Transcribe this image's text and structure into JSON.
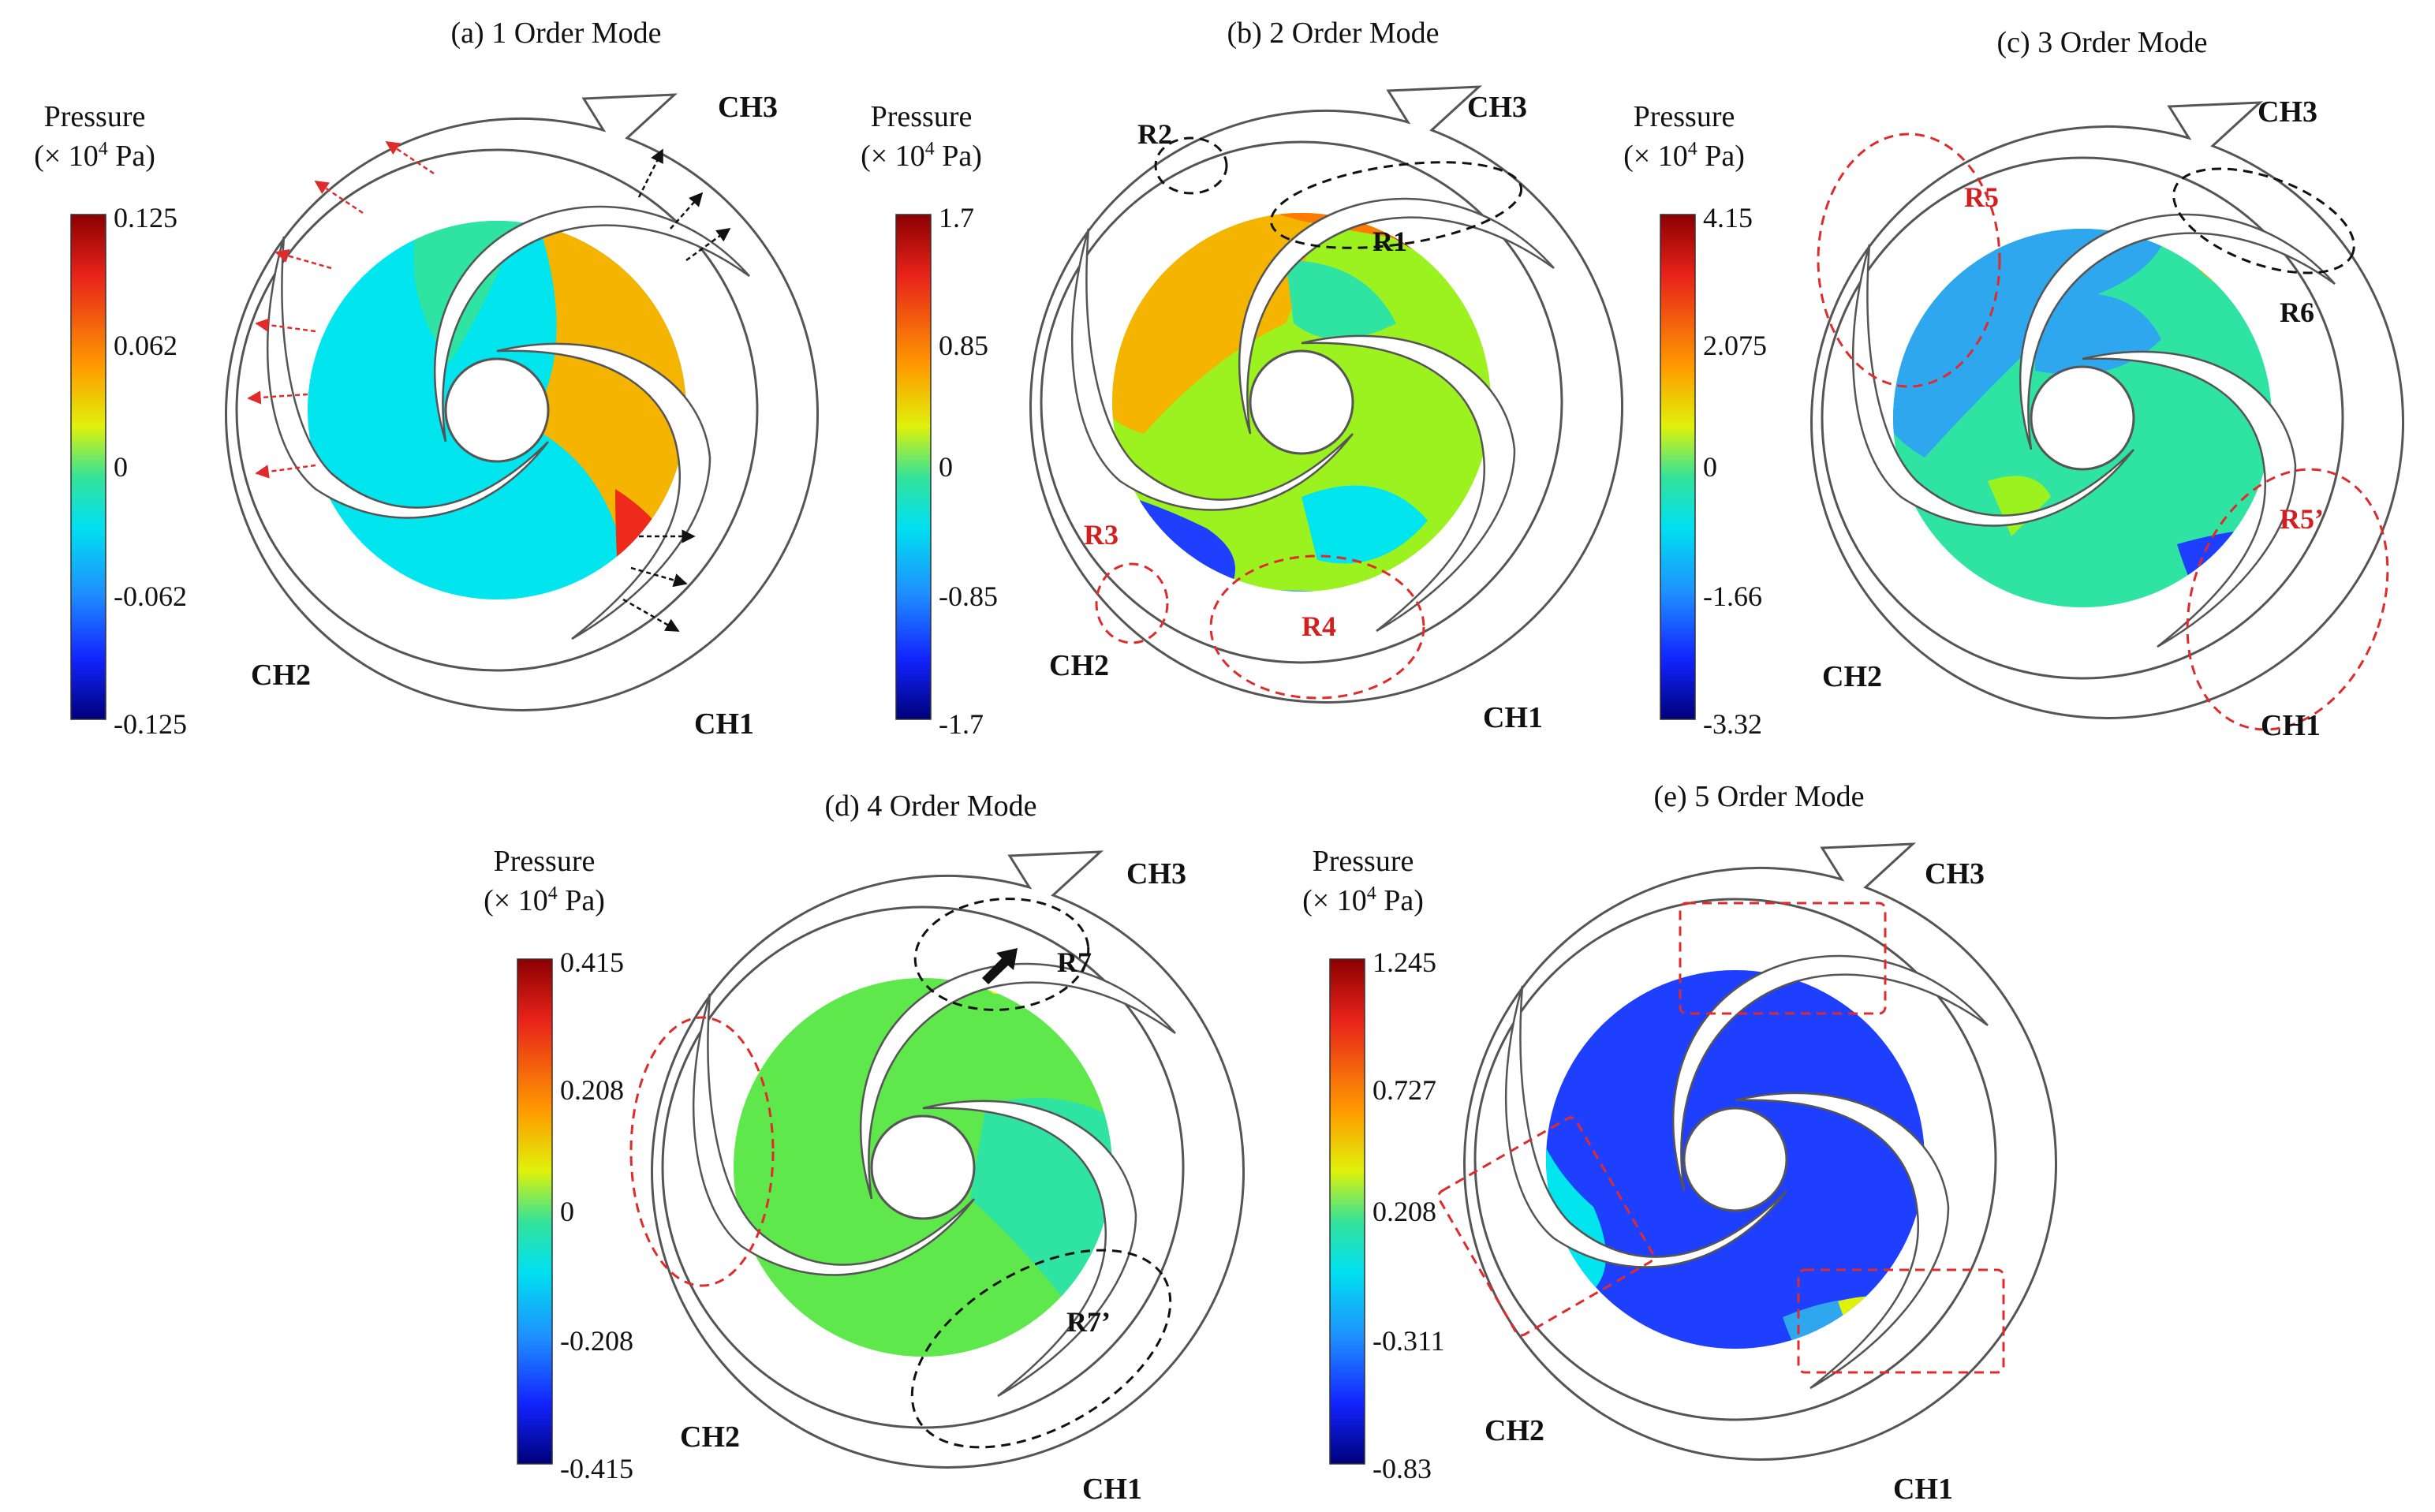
{
  "colors": {
    "deep_blue": "#00008b",
    "blue": "#1f3fff",
    "light_blue": "#2fa7ef",
    "cyan": "#00e5ee",
    "teal_green": "#2fe4a2",
    "green": "#5fe84c",
    "yellow_green": "#9cf21f",
    "yellow": "#f3f300",
    "orange": "#f5b400",
    "dark_orange": "#ff7a00",
    "red": "#ee2a1b",
    "dark_red": "#8b0000",
    "annotation_red": "#e02b2b",
    "annotation_black": "#111111"
  },
  "legend": {
    "title_line1": "Pressure",
    "title_line2_prefix": "(× 10",
    "title_line2_exp": "4",
    "title_line2_suffix": " Pa)"
  },
  "panels": [
    {
      "title": "(a) 1 Order Mode",
      "scale": [
        "0.125",
        "0.062",
        "0",
        "-0.062",
        "-0.125"
      ],
      "channels": [
        "CH1",
        "CH2",
        "CH3"
      ],
      "regions": []
    },
    {
      "title": "(b) 2 Order Mode",
      "scale": [
        "1.7",
        "0.85",
        "0",
        "-0.85",
        "-1.7"
      ],
      "channels": [
        "CH1",
        "CH2",
        "CH3"
      ],
      "regions": [
        "R1",
        "R2",
        "R3",
        "R4"
      ]
    },
    {
      "title": "(c) 3 Order Mode",
      "scale": [
        "4.15",
        "2.075",
        "0",
        "-1.66",
        "-3.32"
      ],
      "channels": [
        "CH1",
        "CH2",
        "CH3"
      ],
      "regions": [
        "R5",
        "R6",
        "R5’"
      ]
    },
    {
      "title": "(d) 4 Order Mode",
      "scale": [
        "0.415",
        "0.208",
        "0",
        "-0.208",
        "-0.415"
      ],
      "channels": [
        "CH1",
        "CH2",
        "CH3"
      ],
      "regions": [
        "R7",
        "R7’"
      ]
    },
    {
      "title": "(e) 5 Order Mode",
      "scale": [
        "1.245",
        "0.727",
        "0.208",
        "-0.311",
        "-0.83"
      ],
      "channels": [
        "CH1",
        "CH2",
        "CH3"
      ],
      "regions": []
    }
  ]
}
